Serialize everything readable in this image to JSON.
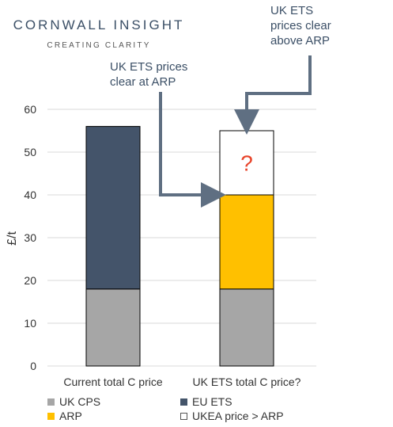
{
  "logo": {
    "title": "CORNWALL INSIGHT",
    "subtitle": "CREATING CLARITY"
  },
  "callouts": {
    "above_arp": [
      "UK ETS",
      "prices clear",
      "above ARP"
    ],
    "at_arp": [
      "UK ETS prices",
      "clear at ARP"
    ]
  },
  "colors": {
    "uk_cps": "#a6a6a6",
    "eu_ets": "#44546a",
    "arp": "#ffc000",
    "ukea_above": "#ffffff",
    "question": "#e8442a",
    "arrow": "#5f6f82",
    "grid": "#d9d9d9"
  },
  "chart_data": {
    "type": "bar",
    "stacked": true,
    "categories": [
      "Current total C price",
      "UK ETS total C price?"
    ],
    "series": [
      {
        "name": "UK CPS",
        "values": [
          18,
          18
        ]
      },
      {
        "name": "EU ETS",
        "values": [
          38,
          0
        ]
      },
      {
        "name": "ARP",
        "values": [
          0,
          22
        ]
      },
      {
        "name": "UKEA price > ARP",
        "values": [
          0,
          15
        ]
      }
    ],
    "ylabel": "£/t",
    "ylim": [
      0,
      60
    ],
    "yticks": [
      0,
      10,
      20,
      30,
      40,
      50,
      60
    ],
    "grid": true,
    "legend_position": "bottom",
    "annotation": "?"
  }
}
